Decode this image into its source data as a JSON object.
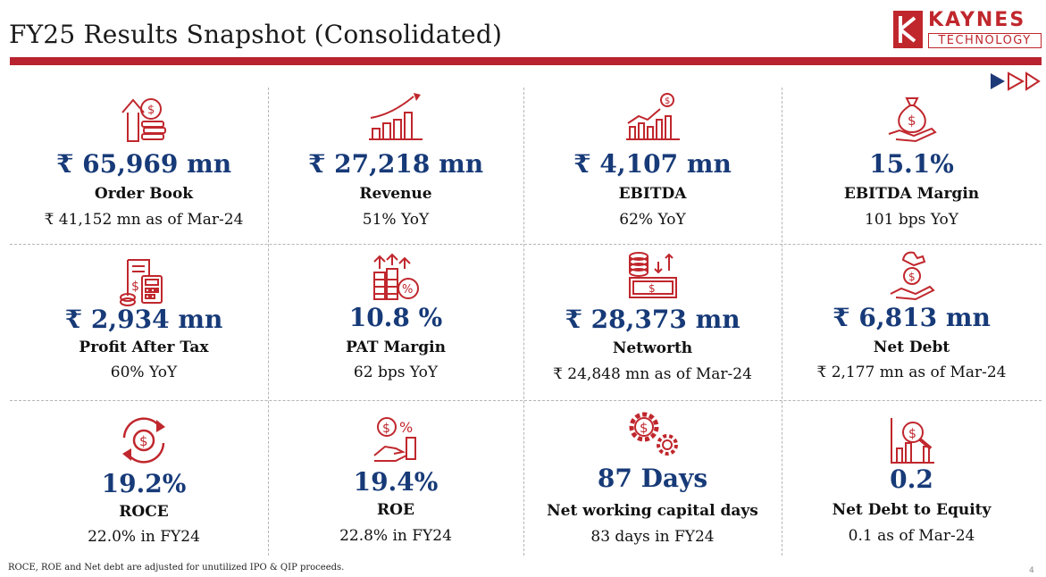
{
  "header": {
    "title": "FY25 Results Snapshot (Consolidated)",
    "logo_top": "KAYNES",
    "logo_bottom": "TECHNOLOGY"
  },
  "colors": {
    "accent": "#b8232f",
    "value": "#173a78",
    "icon": "#c0272d",
    "nav": "#1f3a78"
  },
  "metrics": [
    {
      "value": "₹ 65,969 mn",
      "label": "Order Book",
      "sub": "₹ 41,152 mn as of Mar-24",
      "icon": "order-book-icon"
    },
    {
      "value": "₹ 27,218 mn",
      "label": "Revenue",
      "sub": "51% YoY",
      "icon": "revenue-growth-icon"
    },
    {
      "value": "₹ 4,107 mn",
      "label": "EBITDA",
      "sub": "62% YoY",
      "icon": "ebitda-chart-icon"
    },
    {
      "value": "15.1%",
      "label": "EBITDA Margin",
      "sub": "101 bps YoY",
      "icon": "money-bag-hand-icon"
    },
    {
      "value": "₹ 2,934 mn",
      "label": "Profit After Tax",
      "sub": "60% YoY",
      "icon": "calculator-invoice-icon"
    },
    {
      "value": "10.8 %",
      "label": "PAT Margin",
      "sub": "62 bps YoY",
      "icon": "coins-percent-icon"
    },
    {
      "value": "₹ 28,373 mn",
      "label": "Networth",
      "sub": "₹ 24,848 mn as of Mar-24",
      "icon": "cash-stack-icon"
    },
    {
      "value": "₹ 6,813 mn",
      "label": "Net Debt",
      "sub": "₹ 2,177 mn as of Mar-24",
      "icon": "hand-coin-icon"
    },
    {
      "value": "19.2%",
      "label": "ROCE",
      "sub": "22.0% in FY24",
      "icon": "dollar-cycle-icon"
    },
    {
      "value": "19.4%",
      "label": "ROE",
      "sub": "22.8% in FY24",
      "icon": "hand-dollar-percent-icon"
    },
    {
      "value": "87 Days",
      "label": "Net working capital days",
      "sub": "83 days in FY24",
      "icon": "gears-dollar-icon"
    },
    {
      "value": "0.2",
      "label": "Net Debt to Equity",
      "sub": "0.1 as of Mar-24",
      "icon": "chart-magnifier-icon"
    }
  ],
  "footnote": "ROCE, ROE and Net debt  are adjusted for unutilized IPO & QIP proceeds.",
  "page_number": "4"
}
